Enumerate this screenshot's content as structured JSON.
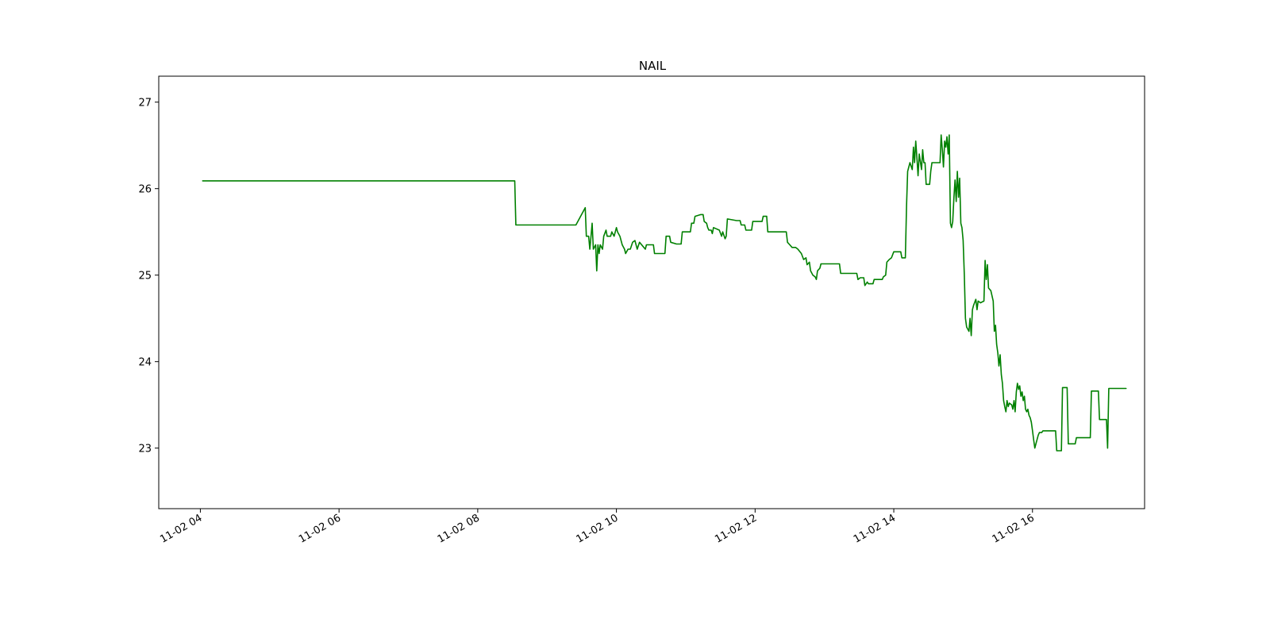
{
  "chart_data": {
    "type": "line",
    "title": "NAIL",
    "xlabel": "",
    "ylabel": "",
    "grid": false,
    "legend": "none",
    "xlim": [
      "11-02 03:24",
      "17:37"
    ],
    "ylim": [
      22.3,
      27.3
    ],
    "x_ticks": [
      {
        "label": "11-02 04",
        "value": "04:00"
      },
      {
        "label": "11-02 06",
        "value": "06:00"
      },
      {
        "label": "11-02 08",
        "value": "08:00"
      },
      {
        "label": "11-02 10",
        "value": "10:00"
      },
      {
        "label": "11-02 12",
        "value": "12:00"
      },
      {
        "label": "11-02 14",
        "value": "14:00"
      },
      {
        "label": "11-02 16",
        "value": "16:00"
      }
    ],
    "y_ticks": [
      23,
      24,
      25,
      26,
      27
    ],
    "series": [
      {
        "color": "#008000",
        "points": [
          [
            "04:02",
            26.09
          ],
          [
            "08:32",
            26.09
          ],
          [
            "08:33",
            25.58
          ],
          [
            "09:25",
            25.58
          ],
          [
            "09:33",
            25.78
          ],
          [
            "09:34",
            25.45
          ],
          [
            "09:36",
            25.45
          ],
          [
            "09:37",
            25.3
          ],
          [
            "09:38",
            25.45
          ],
          [
            "09:39",
            25.6
          ],
          [
            "09:40",
            25.3
          ],
          [
            "09:42",
            25.35
          ],
          [
            "09:43",
            25.05
          ],
          [
            "09:44",
            25.35
          ],
          [
            "09:45",
            25.25
          ],
          [
            "09:46",
            25.35
          ],
          [
            "09:48",
            25.3
          ],
          [
            "09:49",
            25.45
          ],
          [
            "09:51",
            25.52
          ],
          [
            "09:52",
            25.45
          ],
          [
            "09:55",
            25.45
          ],
          [
            "09:56",
            25.5
          ],
          [
            "09:58",
            25.45
          ],
          [
            "10:00",
            25.55
          ],
          [
            "10:01",
            25.5
          ],
          [
            "10:03",
            25.45
          ],
          [
            "10:05",
            25.35
          ],
          [
            "10:07",
            25.3
          ],
          [
            "10:08",
            25.25
          ],
          [
            "10:10",
            25.3
          ],
          [
            "10:12",
            25.3
          ],
          [
            "10:14",
            25.38
          ],
          [
            "10:16",
            25.4
          ],
          [
            "10:18",
            25.3
          ],
          [
            "10:20",
            25.38
          ],
          [
            "10:25",
            25.3
          ],
          [
            "10:26",
            25.35
          ],
          [
            "10:32",
            25.35
          ],
          [
            "10:33",
            25.25
          ],
          [
            "10:42",
            25.25
          ],
          [
            "10:43",
            25.45
          ],
          [
            "10:46",
            25.45
          ],
          [
            "10:47",
            25.38
          ],
          [
            "10:52",
            25.36
          ],
          [
            "10:56",
            25.36
          ],
          [
            "10:57",
            25.5
          ],
          [
            "11:04",
            25.5
          ],
          [
            "11:05",
            25.6
          ],
          [
            "11:07",
            25.6
          ],
          [
            "11:08",
            25.68
          ],
          [
            "11:13",
            25.7
          ],
          [
            "11:15",
            25.7
          ],
          [
            "11:16",
            25.62
          ],
          [
            "11:18",
            25.6
          ],
          [
            "11:19",
            25.55
          ],
          [
            "11:20",
            25.52
          ],
          [
            "11:22",
            25.52
          ],
          [
            "11:23",
            25.48
          ],
          [
            "11:24",
            25.55
          ],
          [
            "11:29",
            25.52
          ],
          [
            "11:31",
            25.45
          ],
          [
            "11:32",
            25.5
          ],
          [
            "11:34",
            25.42
          ],
          [
            "11:35",
            25.45
          ],
          [
            "11:36",
            25.65
          ],
          [
            "11:44",
            25.63
          ],
          [
            "11:47",
            25.63
          ],
          [
            "11:48",
            25.58
          ],
          [
            "11:51",
            25.58
          ],
          [
            "11:52",
            25.52
          ],
          [
            "11:57",
            25.52
          ],
          [
            "11:58",
            25.62
          ],
          [
            "12:06",
            25.62
          ],
          [
            "12:07",
            25.68
          ],
          [
            "12:10",
            25.68
          ],
          [
            "12:11",
            25.5
          ],
          [
            "12:27",
            25.5
          ],
          [
            "12:28",
            25.38
          ],
          [
            "12:30",
            25.35
          ],
          [
            "12:32",
            25.32
          ],
          [
            "12:35",
            25.32
          ],
          [
            "12:37",
            25.3
          ],
          [
            "12:40",
            25.25
          ],
          [
            "12:42",
            25.18
          ],
          [
            "12:44",
            25.2
          ],
          [
            "12:45",
            25.12
          ],
          [
            "12:47",
            25.15
          ],
          [
            "12:48",
            25.05
          ],
          [
            "12:50",
            25.0
          ],
          [
            "12:52",
            24.98
          ],
          [
            "12:53",
            24.95
          ],
          [
            "12:54",
            25.05
          ],
          [
            "12:56",
            25.08
          ],
          [
            "12:57",
            25.13
          ],
          [
            "13:13",
            25.13
          ],
          [
            "13:14",
            25.02
          ],
          [
            "13:28",
            25.02
          ],
          [
            "13:29",
            24.95
          ],
          [
            "13:31",
            24.97
          ],
          [
            "13:34",
            24.97
          ],
          [
            "13:35",
            24.88
          ],
          [
            "13:37",
            24.92
          ],
          [
            "13:38",
            24.9
          ],
          [
            "13:42",
            24.9
          ],
          [
            "13:43",
            24.95
          ],
          [
            "13:50",
            24.95
          ],
          [
            "13:51",
            24.98
          ],
          [
            "13:53",
            25.0
          ],
          [
            "13:54",
            25.15
          ],
          [
            "13:56",
            25.18
          ],
          [
            "13:58",
            25.2
          ],
          [
            "14:00",
            25.27
          ],
          [
            "14:06",
            25.27
          ],
          [
            "14:07",
            25.2
          ],
          [
            "14:10",
            25.2
          ],
          [
            "14:11",
            25.8
          ],
          [
            "14:12",
            26.2
          ],
          [
            "14:14",
            26.3
          ],
          [
            "14:16",
            26.22
          ],
          [
            "14:17",
            26.48
          ],
          [
            "14:18",
            26.3
          ],
          [
            "14:19",
            26.55
          ],
          [
            "14:20",
            26.35
          ],
          [
            "14:21",
            26.15
          ],
          [
            "14:22",
            26.4
          ],
          [
            "14:24",
            26.22
          ],
          [
            "14:25",
            26.45
          ],
          [
            "14:26",
            26.3
          ],
          [
            "14:27",
            26.3
          ],
          [
            "14:28",
            26.05
          ],
          [
            "14:31",
            26.05
          ],
          [
            "14:32",
            26.2
          ],
          [
            "14:33",
            26.3
          ],
          [
            "14:40",
            26.3
          ],
          [
            "14:41",
            26.62
          ],
          [
            "14:42",
            26.45
          ],
          [
            "14:43",
            26.25
          ],
          [
            "14:44",
            26.55
          ],
          [
            "14:45",
            26.48
          ],
          [
            "14:46",
            26.6
          ],
          [
            "14:47",
            26.4
          ],
          [
            "14:48",
            26.62
          ],
          [
            "14:49",
            25.6
          ],
          [
            "14:50",
            25.55
          ],
          [
            "14:51",
            25.62
          ],
          [
            "14:52",
            25.9
          ],
          [
            "14:53",
            26.1
          ],
          [
            "14:54",
            25.85
          ],
          [
            "14:55",
            26.2
          ],
          [
            "14:56",
            25.9
          ],
          [
            "14:57",
            26.12
          ],
          [
            "14:58",
            25.6
          ],
          [
            "14:59",
            25.55
          ],
          [
            "15:00",
            25.4
          ],
          [
            "15:01",
            25.0
          ],
          [
            "15:02",
            24.5
          ],
          [
            "15:03",
            24.4
          ],
          [
            "15:05",
            24.35
          ],
          [
            "15:06",
            24.5
          ],
          [
            "15:07",
            24.3
          ],
          [
            "15:08",
            24.6
          ],
          [
            "15:09",
            24.65
          ],
          [
            "15:11",
            24.72
          ],
          [
            "15:12",
            24.6
          ],
          [
            "15:13",
            24.7
          ],
          [
            "15:15",
            24.68
          ],
          [
            "15:18",
            24.7
          ],
          [
            "15:19",
            25.17
          ],
          [
            "15:20",
            24.95
          ],
          [
            "15:21",
            25.12
          ],
          [
            "15:22",
            24.85
          ],
          [
            "15:24",
            24.82
          ],
          [
            "15:26",
            24.7
          ],
          [
            "15:27",
            24.35
          ],
          [
            "15:28",
            24.42
          ],
          [
            "15:29",
            24.2
          ],
          [
            "15:30",
            24.1
          ],
          [
            "15:31",
            23.95
          ],
          [
            "15:32",
            24.08
          ],
          [
            "15:33",
            23.85
          ],
          [
            "15:34",
            23.75
          ],
          [
            "15:35",
            23.55
          ],
          [
            "15:36",
            23.48
          ],
          [
            "15:37",
            23.42
          ],
          [
            "15:38",
            23.55
          ],
          [
            "15:39",
            23.48
          ],
          [
            "15:40",
            23.52
          ],
          [
            "15:42",
            23.5
          ],
          [
            "15:43",
            23.45
          ],
          [
            "15:44",
            23.55
          ],
          [
            "15:45",
            23.42
          ],
          [
            "15:46",
            23.65
          ],
          [
            "15:47",
            23.75
          ],
          [
            "15:48",
            23.68
          ],
          [
            "15:49",
            23.72
          ],
          [
            "15:50",
            23.6
          ],
          [
            "15:51",
            23.65
          ],
          [
            "15:52",
            23.55
          ],
          [
            "15:53",
            23.6
          ],
          [
            "15:54",
            23.45
          ],
          [
            "15:55",
            23.42
          ],
          [
            "15:56",
            23.45
          ],
          [
            "15:57",
            23.38
          ],
          [
            "15:58",
            23.35
          ],
          [
            "15:59",
            23.3
          ],
          [
            "16:00",
            23.2
          ],
          [
            "16:01",
            23.1
          ],
          [
            "16:02",
            23.0
          ],
          [
            "16:03",
            23.05
          ],
          [
            "16:05",
            23.15
          ],
          [
            "16:06",
            23.18
          ],
          [
            "16:08",
            23.18
          ],
          [
            "16:09",
            23.2
          ],
          [
            "16:20",
            23.2
          ],
          [
            "16:21",
            22.97
          ],
          [
            "16:25",
            22.97
          ],
          [
            "16:26",
            23.7
          ],
          [
            "16:30",
            23.7
          ],
          [
            "16:31",
            23.05
          ],
          [
            "16:37",
            23.05
          ],
          [
            "16:38",
            23.12
          ],
          [
            "16:50",
            23.12
          ],
          [
            "16:51",
            23.66
          ],
          [
            "16:57",
            23.66
          ],
          [
            "16:58",
            23.33
          ],
          [
            "17:04",
            23.33
          ],
          [
            "17:05",
            23.0
          ],
          [
            "17:06",
            23.69
          ],
          [
            "17:21",
            23.69
          ]
        ]
      }
    ]
  }
}
